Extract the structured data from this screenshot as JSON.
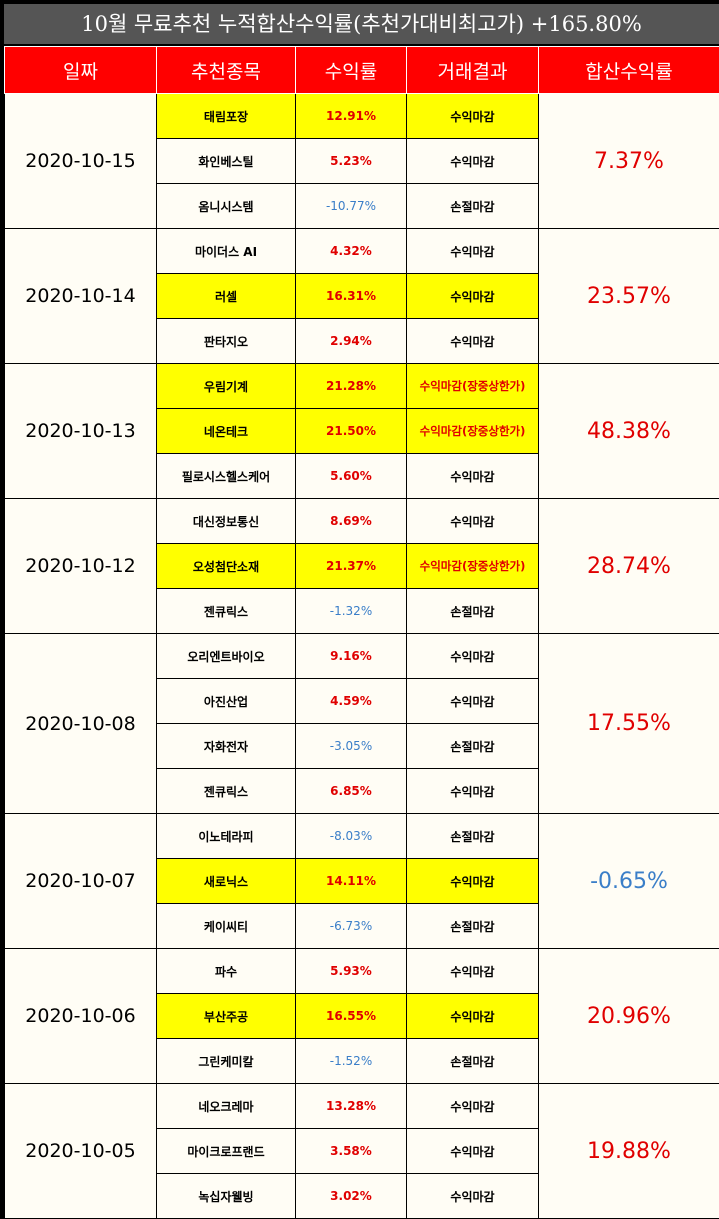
{
  "title": "10월 무료추천 누적합산수익률(추천가대비최고가) +165.80%",
  "headers": [
    "일짜",
    "추천종목",
    "수익률",
    "거래결과",
    "합산수익률"
  ],
  "groups": [
    {
      "date": "2020-10-15",
      "total": "7.37%",
      "total_sign": "pos",
      "rows": [
        {
          "stock": "태림포장",
          "rate": "12.91%",
          "sign": "pos",
          "result": "수익마감",
          "hl_stock": true,
          "hl_result": true
        },
        {
          "stock": "화인베스틸",
          "rate": "5.23%",
          "sign": "pos",
          "result": "수익마감",
          "hl_stock": false,
          "hl_result": false
        },
        {
          "stock": "옴니시스템",
          "rate": "-10.77%",
          "sign": "neg",
          "result": "손절마감",
          "hl_stock": false,
          "hl_result": false
        }
      ]
    },
    {
      "date": "2020-10-14",
      "total": "23.57%",
      "total_sign": "pos",
      "rows": [
        {
          "stock": "마이더스 AI",
          "rate": "4.32%",
          "sign": "pos",
          "result": "수익마감",
          "hl_stock": false,
          "hl_result": false
        },
        {
          "stock": "러셀",
          "rate": "16.31%",
          "sign": "pos",
          "result": "수익마감",
          "hl_stock": true,
          "hl_result": true
        },
        {
          "stock": "판타지오",
          "rate": "2.94%",
          "sign": "pos",
          "result": "수익마감",
          "hl_stock": false,
          "hl_result": false
        }
      ]
    },
    {
      "date": "2020-10-13",
      "total": "48.38%",
      "total_sign": "pos",
      "rows": [
        {
          "stock": "우림기계",
          "rate": "21.28%",
          "sign": "pos",
          "result": "수익마감(장중상한가)",
          "hl_stock": true,
          "hl_result": true
        },
        {
          "stock": "네온테크",
          "rate": "21.50%",
          "sign": "pos",
          "result": "수익마감(장중상한가)",
          "hl_stock": true,
          "hl_result": true
        },
        {
          "stock": "필로시스헬스케어",
          "rate": "5.60%",
          "sign": "pos",
          "result": "수익마감",
          "hl_stock": false,
          "hl_result": false
        }
      ]
    },
    {
      "date": "2020-10-12",
      "total": "28.74%",
      "total_sign": "pos",
      "rows": [
        {
          "stock": "대신정보통신",
          "rate": "8.69%",
          "sign": "pos",
          "result": "수익마감",
          "hl_stock": false,
          "hl_result": false
        },
        {
          "stock": "오성첨단소재",
          "rate": "21.37%",
          "sign": "pos",
          "result": "수익마감(장중상한가)",
          "hl_stock": true,
          "hl_result": true
        },
        {
          "stock": "젠큐릭스",
          "rate": "-1.32%",
          "sign": "neg",
          "result": "손절마감",
          "hl_stock": false,
          "hl_result": false
        }
      ]
    },
    {
      "date": "2020-10-08",
      "total": "17.55%",
      "total_sign": "pos",
      "rows": [
        {
          "stock": "오리엔트바이오",
          "rate": "9.16%",
          "sign": "pos",
          "result": "수익마감",
          "hl_stock": false,
          "hl_result": false
        },
        {
          "stock": "아진산업",
          "rate": "4.59%",
          "sign": "pos",
          "result": "수익마감",
          "hl_stock": false,
          "hl_result": false
        },
        {
          "stock": "자화전자",
          "rate": "-3.05%",
          "sign": "neg",
          "result": "손절마감",
          "hl_stock": false,
          "hl_result": false
        },
        {
          "stock": "젠큐릭스",
          "rate": "6.85%",
          "sign": "pos",
          "result": "수익마감",
          "hl_stock": false,
          "hl_result": false
        }
      ]
    },
    {
      "date": "2020-10-07",
      "total": "-0.65%",
      "total_sign": "neg",
      "rows": [
        {
          "stock": "이노테라피",
          "rate": "-8.03%",
          "sign": "neg",
          "result": "손절마감",
          "hl_stock": false,
          "hl_result": false
        },
        {
          "stock": "새로닉스",
          "rate": "14.11%",
          "sign": "pos",
          "result": "수익마감",
          "hl_stock": true,
          "hl_result": true
        },
        {
          "stock": "케이씨티",
          "rate": "-6.73%",
          "sign": "neg",
          "result": "손절마감",
          "hl_stock": false,
          "hl_result": false
        }
      ]
    },
    {
      "date": "2020-10-06",
      "total": "20.96%",
      "total_sign": "pos",
      "rows": [
        {
          "stock": "파수",
          "rate": "5.93%",
          "sign": "pos",
          "result": "수익마감",
          "hl_stock": false,
          "hl_result": false
        },
        {
          "stock": "부산주공",
          "rate": "16.55%",
          "sign": "pos",
          "result": "수익마감",
          "hl_stock": true,
          "hl_result": true
        },
        {
          "stock": "그린케미칼",
          "rate": "-1.52%",
          "sign": "neg",
          "result": "손절마감",
          "hl_stock": false,
          "hl_result": false
        }
      ]
    },
    {
      "date": "2020-10-05",
      "total": "19.88%",
      "total_sign": "pos",
      "rows": [
        {
          "stock": "네오크레마",
          "rate": "13.28%",
          "sign": "pos",
          "result": "수익마감",
          "hl_stock": false,
          "hl_result": false
        },
        {
          "stock": "마이크로프랜드",
          "rate": "3.58%",
          "sign": "pos",
          "result": "수익마감",
          "hl_stock": false,
          "hl_result": false
        },
        {
          "stock": "녹십자웰빙",
          "rate": "3.02%",
          "sign": "pos",
          "result": "수익마감",
          "hl_stock": false,
          "hl_result": false
        }
      ]
    }
  ]
}
